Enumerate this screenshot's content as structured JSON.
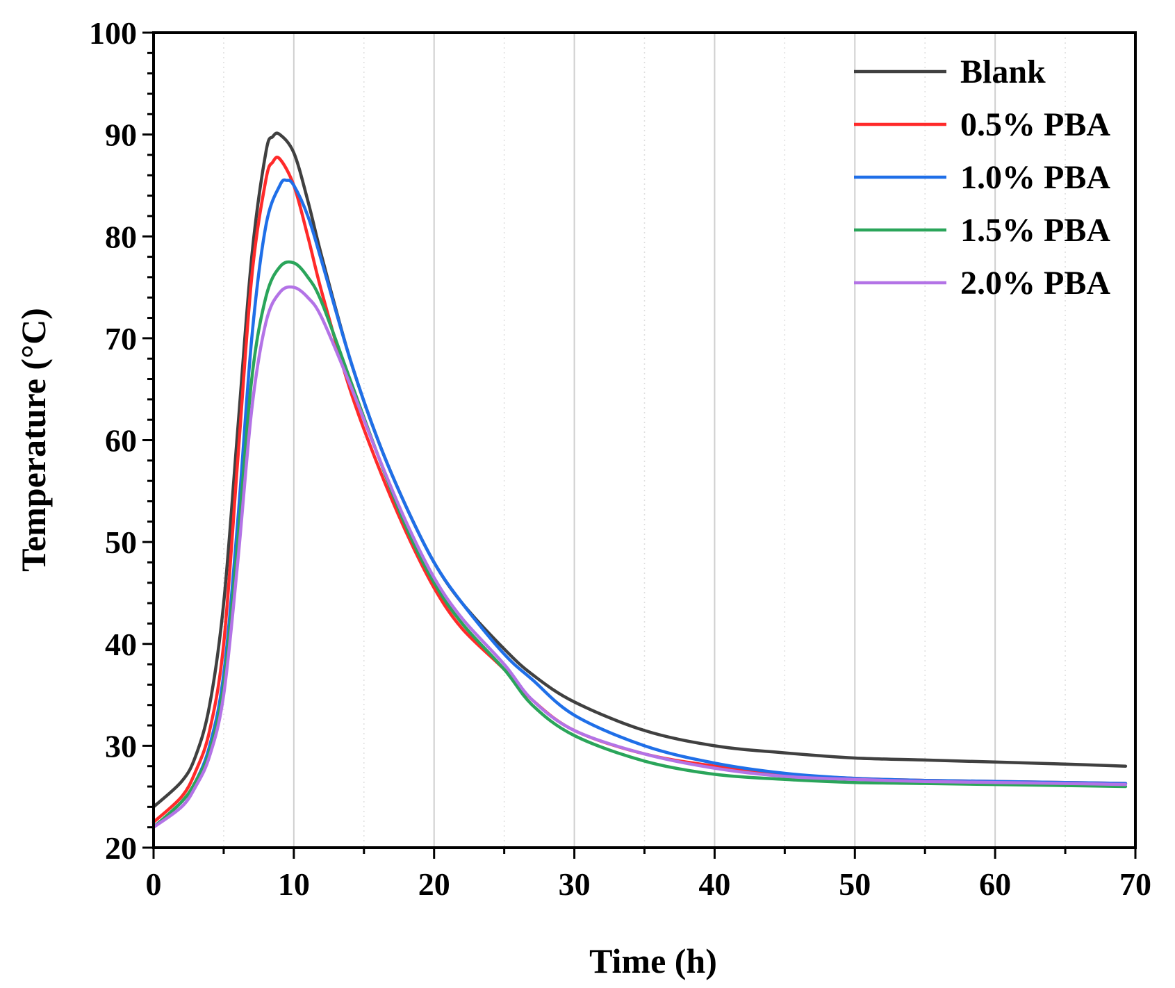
{
  "chart_data": {
    "type": "line",
    "xlabel": "Time (h)",
    "ylabel": "Temperature (°C)",
    "xlim": [
      0,
      70
    ],
    "ylim": [
      20,
      100
    ],
    "xticks": [
      0,
      10,
      20,
      30,
      40,
      50,
      60,
      70
    ],
    "yticks": [
      20,
      30,
      40,
      50,
      60,
      70,
      80,
      90,
      100
    ],
    "grid": "vertical",
    "legend_position": "top-right",
    "series": [
      {
        "name": "Blank",
        "color": "#404040",
        "x": [
          0,
          2,
          3,
          4,
          5,
          6,
          7,
          8,
          8.5,
          9,
          10,
          11,
          12,
          14,
          16,
          18,
          20,
          22,
          25,
          27,
          30,
          35,
          40,
          45,
          50,
          55,
          60,
          65,
          69.3
        ],
        "y": [
          24,
          26.5,
          29,
          34,
          44,
          61,
          78,
          88.2,
          89.8,
          90,
          88.2,
          83.5,
          78,
          68,
          60,
          53.5,
          48,
          44,
          39.5,
          37,
          34.3,
          31.5,
          30,
          29.3,
          28.8,
          28.6,
          28.4,
          28.2,
          28
        ]
      },
      {
        "name": "0.5% PBA",
        "color": "#ff2a2a",
        "x": [
          0,
          2,
          3,
          4,
          5,
          6,
          7,
          8,
          8.5,
          9,
          10,
          11,
          12,
          14,
          16,
          18,
          20,
          22,
          25,
          27,
          30,
          35,
          40,
          45,
          50,
          55,
          60,
          65,
          69.3
        ],
        "y": [
          22.5,
          25,
          27.5,
          31.5,
          40,
          58,
          76,
          85.5,
          87.3,
          87.6,
          85,
          80,
          74.5,
          65,
          57.5,
          51,
          45.5,
          41.5,
          37.5,
          34.5,
          31.5,
          29.2,
          28,
          27.2,
          26.8,
          26.6,
          26.5,
          26.4,
          26.3
        ]
      },
      {
        "name": "1.0% PBA",
        "color": "#1f6fe8",
        "x": [
          0,
          2,
          3,
          4,
          5,
          6,
          7,
          8,
          9,
          9.5,
          10,
          11,
          12,
          14,
          16,
          18,
          20,
          22,
          25,
          27,
          30,
          35,
          40,
          45,
          50,
          55,
          60,
          65,
          69.3
        ],
        "y": [
          22,
          24.5,
          26.5,
          30,
          37,
          52,
          70,
          81,
          85,
          85.5,
          85,
          82,
          77.5,
          68,
          60,
          53.5,
          48,
          44,
          39,
          36.5,
          33,
          30,
          28.3,
          27.3,
          26.8,
          26.6,
          26.5,
          26.4,
          26.3
        ]
      },
      {
        "name": "1.5% PBA",
        "color": "#2aa55a",
        "x": [
          0,
          2,
          3,
          4,
          5,
          6,
          7,
          8,
          9,
          10,
          11,
          12,
          14,
          16,
          18,
          20,
          22,
          25,
          27,
          30,
          35,
          40,
          45,
          50,
          55,
          60,
          65,
          69.3
        ],
        "y": [
          22,
          24.5,
          26.5,
          29.5,
          36,
          50,
          66,
          74,
          77,
          77.4,
          76,
          73.5,
          66,
          58.5,
          51.5,
          46,
          42,
          37.5,
          34,
          31,
          28.5,
          27.2,
          26.7,
          26.4,
          26.3,
          26.2,
          26.1,
          26
        ]
      },
      {
        "name": "2.0% PBA",
        "color": "#b373e6",
        "x": [
          0,
          2,
          3,
          4,
          5,
          6,
          7,
          8,
          9,
          10,
          11,
          12,
          14,
          16,
          18,
          20,
          22,
          25,
          27,
          30,
          35,
          40,
          45,
          50,
          55,
          60,
          65,
          69.3
        ],
        "y": [
          22,
          24,
          26,
          29,
          35,
          48,
          63,
          71.5,
          74.5,
          75,
          74,
          72,
          65.5,
          58.5,
          52,
          46.5,
          42.5,
          38,
          34.5,
          31.5,
          29.2,
          27.8,
          27,
          26.7,
          26.5,
          26.4,
          26.3,
          26.2
        ]
      }
    ]
  }
}
